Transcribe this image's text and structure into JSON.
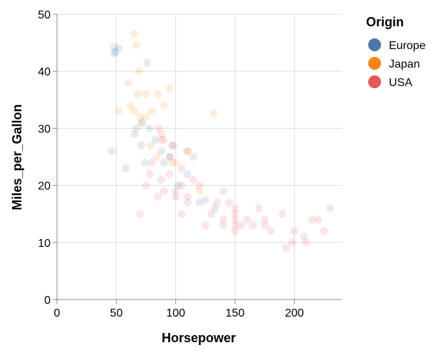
{
  "chart_data": {
    "type": "scatter",
    "x_label": "Horsepower",
    "y_label": "Miles_per_Gallon",
    "legend_title": "Origin",
    "legend_position": "right",
    "grid": true,
    "opacity": 0.15,
    "xlim": [
      0,
      240
    ],
    "xticks": [
      0,
      50,
      100,
      150,
      200
    ],
    "ylim": [
      0,
      50
    ],
    "yticks": [
      0,
      10,
      20,
      30,
      40,
      50
    ],
    "series": [
      {
        "name": "Europe",
        "color": "#4c78a8",
        "x": [
          46,
          48,
          48,
          52,
          49,
          67,
          71,
          76,
          78,
          88,
          90,
          95,
          97,
          102,
          110,
          115,
          120,
          125,
          133,
          71,
          58,
          65,
          74,
          83
        ],
        "values": [
          26,
          43.1,
          44.3,
          44,
          43.4,
          30,
          31,
          41.5,
          30,
          26,
          24,
          25,
          27,
          20,
          22,
          25,
          17,
          17.5,
          16,
          27,
          23,
          29,
          24,
          28
        ]
      },
      {
        "name": "Japan",
        "color": "#f58518",
        "x": [
          52,
          60,
          65,
          67,
          68,
          70,
          75,
          75,
          80,
          85,
          88,
          90,
          95,
          97,
          100,
          110,
          120,
          132,
          62,
          69,
          72,
          79,
          84,
          65
        ],
        "values": [
          33,
          38,
          46.6,
          44.6,
          36,
          32,
          36,
          32,
          33,
          36,
          28,
          34,
          37,
          24,
          24,
          26,
          19,
          32.7,
          34,
          40,
          31,
          27,
          25,
          33
        ]
      },
      {
        "name": "USA",
        "color": "#e45756",
        "x": [
          70,
          75,
          78,
          80,
          85,
          88,
          90,
          95,
          100,
          100,
          105,
          105,
          110,
          110,
          120,
          125,
          130,
          135,
          140,
          140,
          145,
          150,
          150,
          150,
          150,
          150,
          155,
          160,
          165,
          170,
          175,
          180,
          190,
          193,
          198,
          200,
          208,
          210,
          215,
          220,
          225,
          230,
          86,
          88,
          95,
          105,
          115,
          140,
          175,
          90,
          98,
          110
        ],
        "values": [
          15,
          20,
          22,
          24,
          18,
          21,
          19,
          25,
          18,
          19,
          20,
          15,
          18,
          17,
          20,
          13,
          15,
          17,
          14,
          19,
          17,
          14,
          13,
          12,
          15,
          16,
          13,
          14,
          13,
          16,
          14,
          12,
          15,
          9,
          10,
          12,
          11,
          10,
          14,
          14,
          12,
          16,
          30,
          29,
          22,
          23,
          21,
          13,
          13,
          28,
          27,
          26
        ]
      }
    ]
  }
}
